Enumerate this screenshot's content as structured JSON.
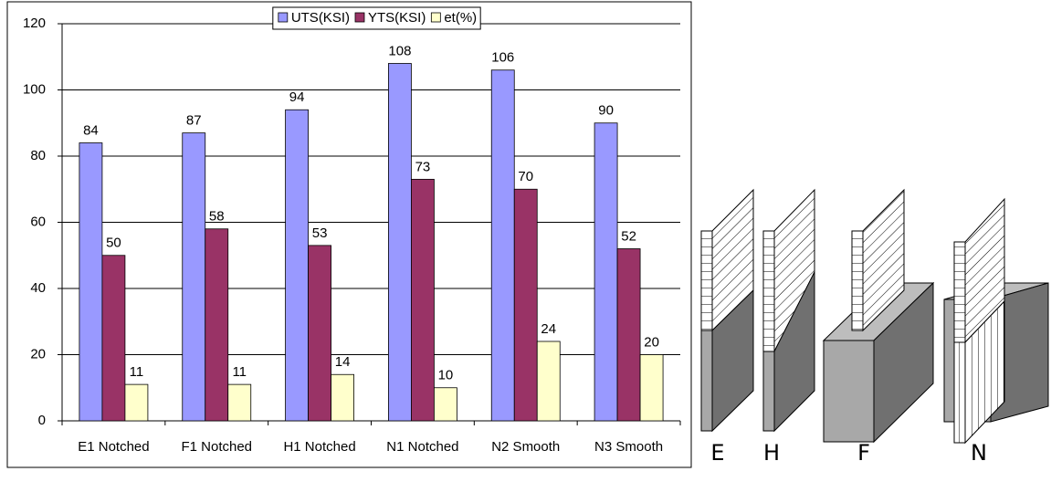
{
  "chart_data": {
    "type": "bar",
    "categories": [
      "E1 Notched",
      "F1 Notched",
      "H1 Notched",
      "N1 Notched",
      "N2 Smooth",
      "N3 Smooth"
    ],
    "series": [
      {
        "name": "UTS(KSI)",
        "color": "#9999ff",
        "values": [
          84,
          87,
          94,
          108,
          106,
          90
        ]
      },
      {
        "name": "YTS(KSI)",
        "color": "#993366",
        "values": [
          50,
          58,
          53,
          73,
          70,
          52
        ]
      },
      {
        "name": "et(%)",
        "color": "#ffffcc",
        "values": [
          11,
          11,
          14,
          10,
          24,
          20
        ]
      }
    ],
    "ylim": [
      0,
      120
    ],
    "yticks": [
      0,
      20,
      40,
      60,
      80,
      100,
      120
    ],
    "grid": true,
    "legend": "top"
  },
  "diagram": {
    "labels": [
      "E",
      "H",
      "F",
      "N"
    ]
  }
}
